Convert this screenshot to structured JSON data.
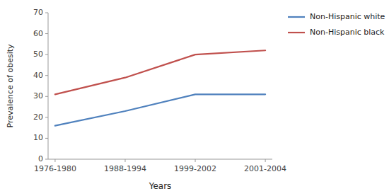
{
  "chart_data": {
    "type": "line",
    "xlabel": "Years",
    "ylabel": "Prevalence of obesity",
    "categories": [
      "1976-1980",
      "1988-1994",
      "1999-2002",
      "2001-2004"
    ],
    "series": [
      {
        "name": "Non-Hispanic white",
        "color": "#4f81bd",
        "values": [
          16,
          23,
          31,
          31
        ]
      },
      {
        "name": "Non-Hispanic black",
        "color": "#c0504d",
        "values": [
          31,
          39,
          50,
          52
        ]
      }
    ],
    "ylim": [
      0,
      70
    ],
    "yticks": [
      0,
      10,
      20,
      30,
      40,
      50,
      60,
      70
    ],
    "grid": false,
    "legend": "upper right"
  }
}
